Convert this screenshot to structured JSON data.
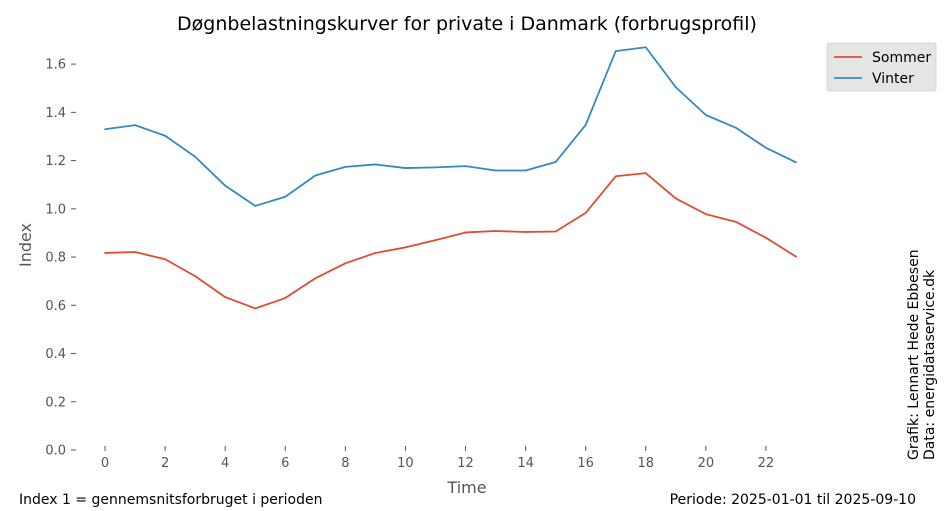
{
  "chart_data": {
    "type": "line",
    "title": "Døgnbelastningskurver for private i Danmark (forbrugsprofil)",
    "xlabel": "Time",
    "ylabel": "Index",
    "xlim": [
      -1.1,
      24.1
    ],
    "ylim": [
      0.0,
      1.7
    ],
    "xticks": [
      0,
      2,
      4,
      6,
      8,
      10,
      12,
      14,
      16,
      18,
      20,
      22
    ],
    "yticks": [
      0.0,
      0.2,
      0.4,
      0.6,
      0.8,
      1.0,
      1.2,
      1.4,
      1.6
    ],
    "ytick_labels": [
      "0.0",
      "0.2",
      "0.4",
      "0.6",
      "0.8",
      "1.0",
      "1.2",
      "1.4",
      "1.6"
    ],
    "grid": false,
    "legend_position": "top-right",
    "x": [
      0,
      1,
      2,
      3,
      4,
      5,
      6,
      7,
      8,
      9,
      10,
      11,
      12,
      13,
      14,
      15,
      16,
      17,
      18,
      19,
      20,
      21,
      22,
      23
    ],
    "series": [
      {
        "name": "Sommer",
        "color": "#e24a33",
        "values": [
          0.817,
          0.821,
          0.791,
          0.721,
          0.634,
          0.587,
          0.63,
          0.712,
          0.774,
          0.817,
          0.84,
          0.87,
          0.902,
          0.908,
          0.904,
          0.906,
          0.983,
          1.135,
          1.148,
          1.043,
          0.978,
          0.946,
          0.88,
          0.802
        ]
      },
      {
        "name": "Vinter",
        "color": "#348abd",
        "values": [
          1.33,
          1.347,
          1.303,
          1.216,
          1.096,
          1.012,
          1.05,
          1.138,
          1.174,
          1.184,
          1.169,
          1.172,
          1.177,
          1.159,
          1.159,
          1.194,
          1.348,
          1.654,
          1.67,
          1.504,
          1.389,
          1.336,
          1.253,
          1.193
        ]
      }
    ]
  },
  "notes": {
    "left": "Index 1 = gennemsnitsforbruget i perioden",
    "right": "Periode: 2025-01-01 til 2025-09-10",
    "credit_line1": "Grafik: Lennart Hede Ebbesen",
    "credit_line2": "Data: energidataservice.dk"
  }
}
